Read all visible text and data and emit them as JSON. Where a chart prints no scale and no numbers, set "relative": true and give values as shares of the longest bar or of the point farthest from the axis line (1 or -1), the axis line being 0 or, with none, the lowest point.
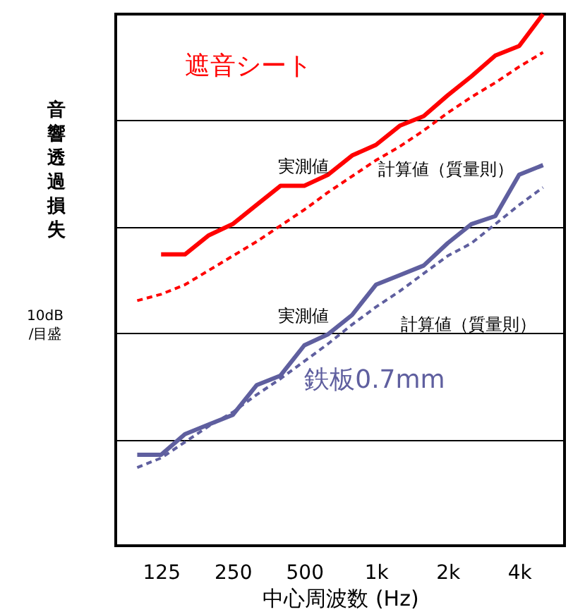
{
  "chart_data": {
    "type": "line",
    "relative": true,
    "ylabel": "音響透過損失",
    "xlabel": "中心周波数 (Hz)",
    "categories": [
      null,
      "125",
      null,
      null,
      "250",
      null,
      null,
      "500",
      null,
      null,
      "1k",
      null,
      null,
      "2k",
      null,
      null,
      "4k",
      null
    ],
    "series": [
      {
        "name": "遮音シート",
        "color": "#ff0000",
        "line_style": "solid",
        "values": [
          null,
          0.548,
          0.548,
          0.584,
          0.605,
          0.641,
          0.677,
          0.677,
          0.698,
          0.734,
          0.754,
          0.79,
          0.808,
          0.847,
          0.883,
          0.922,
          0.94,
          1
        ]
      },
      {
        "color": "#ff0000",
        "line_style": "dotted",
        "values": [
          0.461,
          0.473,
          0.491,
          0.518,
          0.545,
          0.572,
          0.602,
          0.632,
          0.665,
          0.695,
          0.725,
          0.751,
          0.781,
          0.814,
          0.844,
          0.871,
          0.901,
          0.928
        ]
      },
      {
        "name": "鉄板0.7mm",
        "color": "#5f5f9f",
        "line_style": "solid",
        "values": [
          0.171,
          0.171,
          0.21,
          0.228,
          0.246,
          0.302,
          0.32,
          0.377,
          0.398,
          0.434,
          0.491,
          0.509,
          0.527,
          0.569,
          0.605,
          0.62,
          0.698,
          0.716
        ]
      },
      {
        "color": "#5f5f9f",
        "line_style": "dotted",
        "values": [
          0.147,
          0.165,
          0.195,
          0.225,
          0.251,
          0.284,
          0.314,
          0.347,
          0.38,
          0.416,
          0.449,
          0.479,
          0.512,
          0.545,
          0.569,
          0.605,
          0.641,
          0.674
        ]
      }
    ],
    "annotations": [
      "実測値",
      "計算値（質量則）",
      "実測値",
      "計算値（質量則）",
      "10dB/目盛"
    ],
    "grid": "y"
  }
}
